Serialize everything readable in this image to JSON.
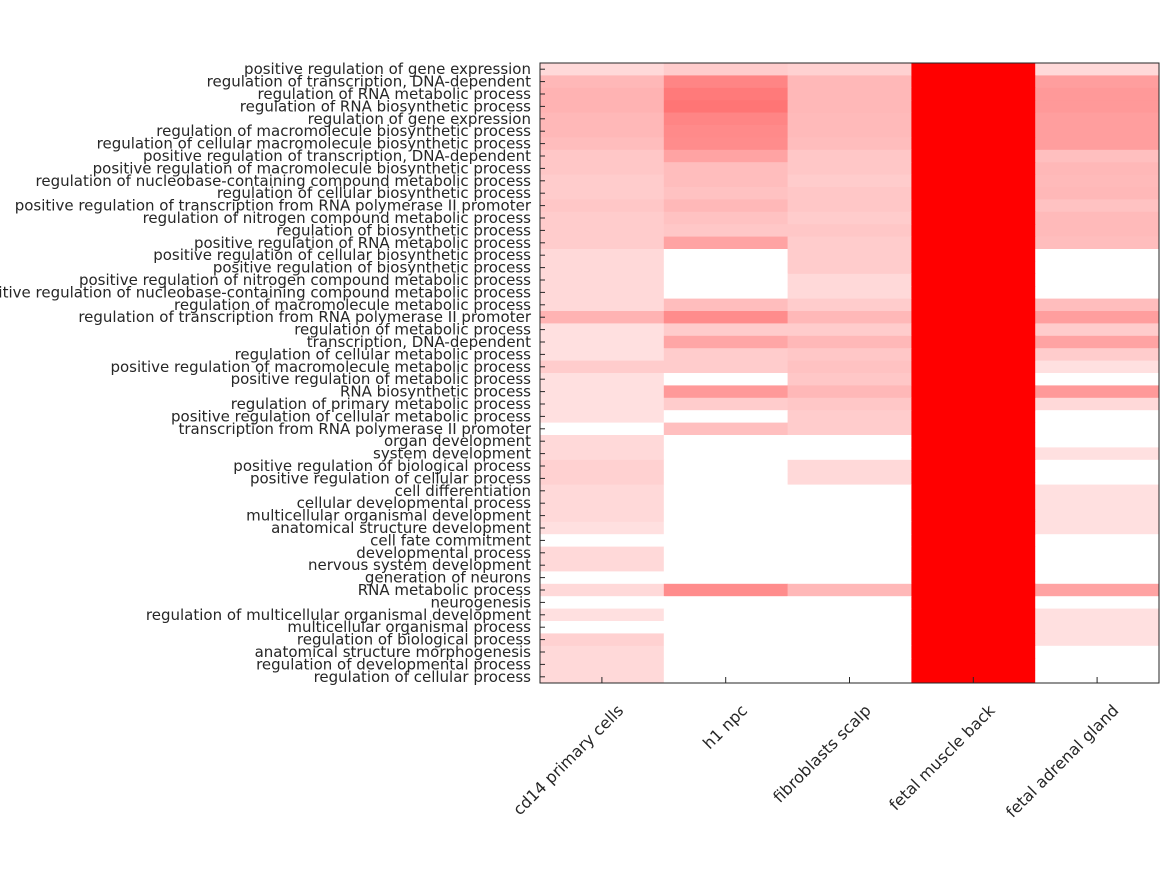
{
  "chart_data": {
    "type": "heatmap",
    "title": "",
    "xlabel": "",
    "ylabel": "",
    "colormap": {
      "low": "#ffffff",
      "high": "#ff0000"
    },
    "value_range": [
      0,
      1
    ],
    "grid": false,
    "columns": [
      "cd14 primary cells",
      "h1 npc",
      "fibroblasts scalp",
      "fetal muscle back",
      "fetal adrenal gland"
    ],
    "rows": [
      "positive regulation of gene expression",
      "regulation of transcription, DNA-dependent",
      "regulation of RNA metabolic process",
      "regulation of RNA biosynthetic process",
      "regulation of gene expression",
      "regulation of macromolecule biosynthetic process",
      "regulation of cellular macromolecule biosynthetic process",
      "positive regulation of transcription, DNA-dependent",
      "positive regulation of macromolecule biosynthetic process",
      "regulation of nucleobase-containing compound metabolic process",
      "regulation of cellular biosynthetic process",
      "positive regulation of transcription from RNA polymerase II promoter",
      "regulation of nitrogen compound metabolic process",
      "regulation of biosynthetic process",
      "positive regulation of RNA metabolic process",
      "positive regulation of cellular biosynthetic process",
      "positive regulation of biosynthetic process",
      "positive regulation of nitrogen compound metabolic process",
      "positive regulation of nucleobase-containing compound metabolic process",
      "regulation of macromolecule metabolic process",
      "regulation of transcription from RNA polymerase II promoter",
      "regulation of metabolic process",
      "transcription, DNA-dependent",
      "regulation of cellular metabolic process",
      "positive regulation of macromolecule metabolic process",
      "positive regulation of metabolic process",
      "RNA biosynthetic process",
      "regulation of primary metabolic process",
      "positive regulation of cellular metabolic process",
      "transcription from RNA polymerase II promoter",
      "organ development",
      "system development",
      "positive regulation of biological process",
      "positive regulation of cellular process",
      "cell differentiation",
      "cellular developmental process",
      "multicellular organismal development",
      "anatomical structure development",
      "cell fate commitment",
      "developmental process",
      "nervous system development",
      "generation of neurons",
      "RNA metabolic process",
      "neurogenesis",
      "regulation of multicellular organismal development",
      "multicellular organismal process",
      "regulation of biological process",
      "anatomical structure morphogenesis",
      "regulation of developmental process",
      "regulation of cellular process"
    ],
    "values": [
      [
        0.15,
        0.2,
        0.18,
        1.0,
        0.15
      ],
      [
        0.28,
        0.48,
        0.28,
        1.0,
        0.38
      ],
      [
        0.3,
        0.52,
        0.28,
        1.0,
        0.4
      ],
      [
        0.3,
        0.54,
        0.28,
        1.0,
        0.4
      ],
      [
        0.28,
        0.48,
        0.27,
        1.0,
        0.38
      ],
      [
        0.28,
        0.46,
        0.27,
        1.0,
        0.38
      ],
      [
        0.26,
        0.45,
        0.26,
        1.0,
        0.38
      ],
      [
        0.22,
        0.36,
        0.22,
        1.0,
        0.25
      ],
      [
        0.22,
        0.26,
        0.22,
        1.0,
        0.28
      ],
      [
        0.2,
        0.26,
        0.2,
        1.0,
        0.27
      ],
      [
        0.2,
        0.24,
        0.22,
        1.0,
        0.28
      ],
      [
        0.22,
        0.28,
        0.22,
        1.0,
        0.24
      ],
      [
        0.2,
        0.24,
        0.2,
        1.0,
        0.27
      ],
      [
        0.2,
        0.22,
        0.22,
        1.0,
        0.27
      ],
      [
        0.2,
        0.36,
        0.2,
        1.0,
        0.26
      ],
      [
        0.15,
        0.0,
        0.2,
        1.0,
        0.0
      ],
      [
        0.15,
        0.0,
        0.2,
        1.0,
        0.0
      ],
      [
        0.15,
        0.0,
        0.15,
        1.0,
        0.0
      ],
      [
        0.15,
        0.0,
        0.15,
        1.0,
        0.0
      ],
      [
        0.15,
        0.26,
        0.2,
        1.0,
        0.26
      ],
      [
        0.3,
        0.45,
        0.28,
        1.0,
        0.38
      ],
      [
        0.12,
        0.2,
        0.2,
        1.0,
        0.2
      ],
      [
        0.12,
        0.35,
        0.28,
        1.0,
        0.36
      ],
      [
        0.12,
        0.2,
        0.22,
        1.0,
        0.2
      ],
      [
        0.2,
        0.2,
        0.24,
        1.0,
        0.12
      ],
      [
        0.12,
        0.0,
        0.22,
        1.0,
        0.0
      ],
      [
        0.12,
        0.4,
        0.28,
        1.0,
        0.4
      ],
      [
        0.12,
        0.2,
        0.22,
        1.0,
        0.15
      ],
      [
        0.12,
        0.0,
        0.2,
        1.0,
        0.0
      ],
      [
        0.0,
        0.25,
        0.2,
        1.0,
        0.0
      ],
      [
        0.15,
        0.0,
        0.0,
        1.0,
        0.0
      ],
      [
        0.15,
        0.0,
        0.0,
        1.0,
        0.12
      ],
      [
        0.18,
        0.0,
        0.15,
        1.0,
        0.0
      ],
      [
        0.18,
        0.0,
        0.15,
        1.0,
        0.0
      ],
      [
        0.15,
        0.0,
        0.0,
        1.0,
        0.12
      ],
      [
        0.15,
        0.0,
        0.0,
        1.0,
        0.12
      ],
      [
        0.15,
        0.0,
        0.0,
        1.0,
        0.12
      ],
      [
        0.12,
        0.0,
        0.0,
        1.0,
        0.12
      ],
      [
        0.0,
        0.0,
        0.0,
        1.0,
        0.0
      ],
      [
        0.15,
        0.0,
        0.0,
        1.0,
        0.0
      ],
      [
        0.15,
        0.0,
        0.0,
        1.0,
        0.0
      ],
      [
        0.0,
        0.0,
        0.0,
        1.0,
        0.0
      ],
      [
        0.15,
        0.45,
        0.28,
        1.0,
        0.36
      ],
      [
        0.0,
        0.0,
        0.0,
        1.0,
        0.0
      ],
      [
        0.12,
        0.0,
        0.0,
        1.0,
        0.12
      ],
      [
        0.0,
        0.0,
        0.0,
        1.0,
        0.12
      ],
      [
        0.18,
        0.0,
        0.0,
        1.0,
        0.12
      ],
      [
        0.15,
        0.0,
        0.0,
        1.0,
        0.0
      ],
      [
        0.15,
        0.0,
        0.0,
        1.0,
        0.0
      ],
      [
        0.15,
        0.0,
        0.0,
        1.0,
        0.0
      ]
    ]
  }
}
